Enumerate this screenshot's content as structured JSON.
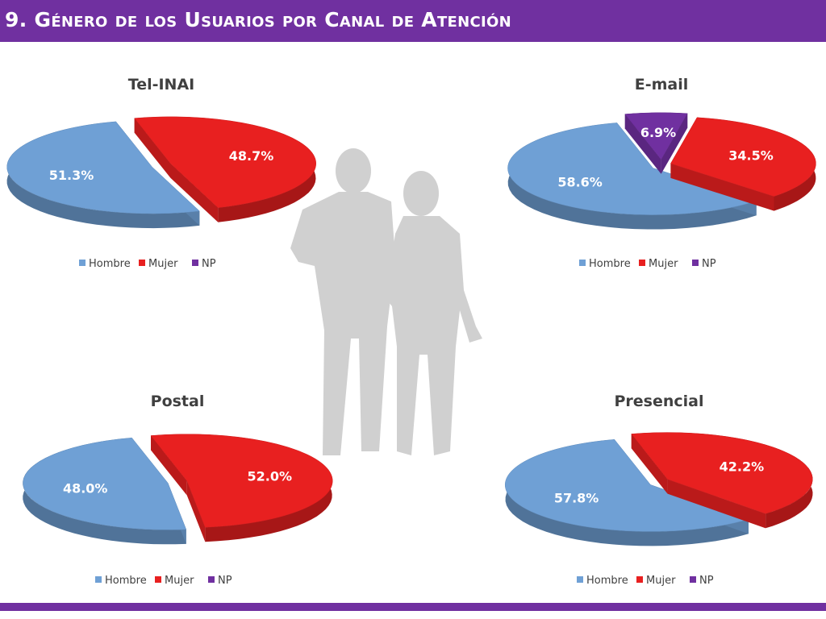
{
  "header": {
    "title": "9. Género de los Usuarios por Canal de Atención"
  },
  "colors": {
    "accent": "#7030A0",
    "Hombre": "#6FA0D5",
    "Mujer": "#E82020",
    "NP": "#7030A0",
    "silhouette": "#D0D0D0"
  },
  "chart_data": [
    {
      "type": "pie",
      "title": "Tel-INAI",
      "categories": [
        "Hombre",
        "Mujer",
        "NP"
      ],
      "values": [
        51.3,
        48.7,
        0
      ],
      "labels": [
        "51.3%",
        "48.7%",
        ""
      ],
      "legend": [
        "Hombre",
        "Mujer",
        "NP"
      ]
    },
    {
      "type": "pie",
      "title": "E-mail",
      "categories": [
        "Hombre",
        "Mujer",
        "NP"
      ],
      "values": [
        58.6,
        34.5,
        6.9
      ],
      "labels": [
        "58.6%",
        "34.5%",
        "6.9%"
      ],
      "legend": [
        "Hombre",
        "Mujer",
        "NP"
      ]
    },
    {
      "type": "pie",
      "title": "Postal",
      "categories": [
        "Hombre",
        "Mujer",
        "NP"
      ],
      "values": [
        48.0,
        52.0,
        0
      ],
      "labels": [
        "48.0%",
        "52.0%",
        ""
      ],
      "legend": [
        "Hombre",
        "Mujer",
        "NP"
      ]
    },
    {
      "type": "pie",
      "title": "Presencial",
      "categories": [
        "Hombre",
        "Mujer",
        "NP"
      ],
      "values": [
        57.8,
        42.2,
        0
      ],
      "labels": [
        "57.8%",
        "42.2%",
        ""
      ],
      "legend": [
        "Hombre",
        "Mujer",
        "NP"
      ]
    }
  ]
}
